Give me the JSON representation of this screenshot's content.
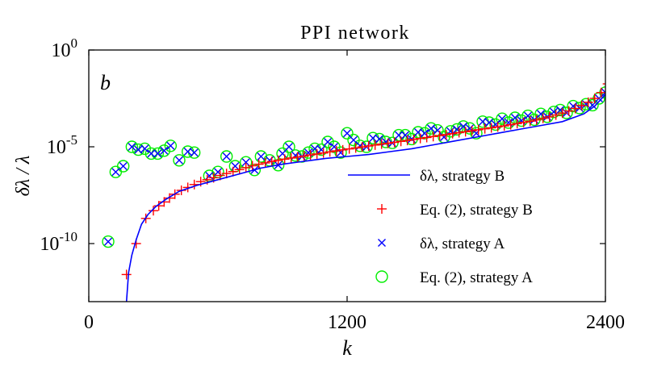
{
  "chart_data": {
    "type": "scatter",
    "title": "PPI network",
    "xlabel": "k",
    "ylabel": "δλ / λ",
    "panel_tag": "b",
    "xlim": [
      0,
      2400
    ],
    "ylim_log10": [
      -13,
      0
    ],
    "yscale": "log",
    "xticks": [
      0,
      1200,
      2400
    ],
    "xtick_labels": [
      "0",
      "1200",
      "2400"
    ],
    "yticks_log10": [
      0,
      -5,
      -10
    ],
    "ytick_labels": [
      {
        "base": "10",
        "exp": "0"
      },
      {
        "base": "10",
        "exp": "-5"
      },
      {
        "base": "10",
        "exp": "-10"
      }
    ],
    "legend_position": "bottom-right",
    "series": [
      {
        "name": "δλ, strategy B",
        "style": "line",
        "color": "#0000ff",
        "x": [
          175,
          185,
          200,
          220,
          245,
          275,
          310,
          360,
          420,
          500,
          600,
          700,
          800,
          900,
          1000,
          1100,
          1200,
          1300,
          1400,
          1500,
          1600,
          1700,
          1800,
          1900,
          2000,
          2100,
          2200,
          2300,
          2350,
          2400
        ],
        "y_log10": [
          -13,
          -11.5,
          -10.6,
          -9.8,
          -9.0,
          -8.5,
          -8.1,
          -7.7,
          -7.3,
          -7.0,
          -6.7,
          -6.4,
          -6.1,
          -5.9,
          -5.75,
          -5.6,
          -5.5,
          -5.4,
          -5.25,
          -5.1,
          -4.9,
          -4.7,
          -4.5,
          -4.3,
          -4.1,
          -3.9,
          -3.7,
          -3.3,
          -2.9,
          -2.3
        ]
      },
      {
        "name": "Eq. (2), strategy B",
        "style": "marker",
        "marker": "plus",
        "color": "#ff0000",
        "x": [
          175,
          220,
          265,
          300,
          325,
          350,
          375,
          400,
          430,
          460,
          490,
          520,
          550,
          580,
          610,
          640,
          670,
          700,
          730,
          760,
          790,
          820,
          850,
          880,
          910,
          940,
          970,
          1000,
          1030,
          1060,
          1090,
          1120,
          1150,
          1180,
          1210,
          1240,
          1270,
          1300,
          1330,
          1360,
          1390,
          1420,
          1450,
          1480,
          1510,
          1540,
          1570,
          1600,
          1630,
          1660,
          1690,
          1720,
          1750,
          1780,
          1810,
          1840,
          1870,
          1900,
          1930,
          1960,
          1990,
          2020,
          2050,
          2080,
          2110,
          2140,
          2170,
          2200,
          2230,
          2260,
          2290,
          2320,
          2350,
          2380,
          2410
        ],
        "y_log10": [
          -11.6,
          -10.0,
          -8.7,
          -8.3,
          -8.05,
          -7.85,
          -7.65,
          -7.45,
          -7.25,
          -7.1,
          -6.95,
          -6.8,
          -6.7,
          -6.6,
          -6.48,
          -6.38,
          -6.28,
          -6.18,
          -6.08,
          -5.98,
          -5.9,
          -5.83,
          -5.76,
          -5.7,
          -5.64,
          -5.58,
          -5.53,
          -5.48,
          -5.42,
          -5.37,
          -5.32,
          -5.26,
          -5.21,
          -5.16,
          -5.11,
          -5.06,
          -5.01,
          -4.96,
          -4.91,
          -4.86,
          -4.82,
          -4.77,
          -4.72,
          -4.67,
          -4.62,
          -4.57,
          -4.52,
          -4.47,
          -4.42,
          -4.37,
          -4.32,
          -4.27,
          -4.22,
          -4.17,
          -4.12,
          -4.07,
          -4.02,
          -3.97,
          -3.92,
          -3.86,
          -3.8,
          -3.74,
          -3.68,
          -3.61,
          -3.53,
          -3.45,
          -3.36,
          -3.26,
          -3.15,
          -3.02,
          -2.87,
          -2.7,
          -2.5,
          -2.2,
          -1.75
        ]
      },
      {
        "name": "δλ, strategy A",
        "style": "marker",
        "marker": "x",
        "color": "#0000ff",
        "x": [
          90,
          125,
          160,
          200,
          230,
          260,
          290,
          320,
          350,
          380,
          420,
          460,
          490,
          560,
          600,
          640,
          680,
          730,
          770,
          800,
          840,
          880,
          900,
          930,
          960,
          990,
          1020,
          1050,
          1080,
          1110,
          1140,
          1170,
          1200,
          1230,
          1260,
          1290,
          1320,
          1350,
          1380,
          1410,
          1440,
          1470,
          1500,
          1530,
          1560,
          1590,
          1620,
          1650,
          1680,
          1710,
          1740,
          1770,
          1800,
          1830,
          1860,
          1890,
          1920,
          1950,
          1980,
          2010,
          2040,
          2070,
          2100,
          2130,
          2160,
          2190,
          2220,
          2250,
          2280,
          2310,
          2340,
          2370,
          2400
        ],
        "y_log10": [
          -9.9,
          -6.3,
          -6.0,
          -5.0,
          -5.15,
          -5.1,
          -5.35,
          -5.35,
          -5.2,
          -4.95,
          -5.7,
          -5.25,
          -5.3,
          -6.5,
          -6.3,
          -5.5,
          -6.0,
          -5.8,
          -6.2,
          -5.5,
          -5.7,
          -5.95,
          -5.35,
          -5.0,
          -5.45,
          -5.5,
          -5.3,
          -5.1,
          -5.15,
          -4.75,
          -5.0,
          -5.3,
          -4.3,
          -4.65,
          -4.95,
          -5.0,
          -4.55,
          -4.6,
          -4.75,
          -4.8,
          -4.4,
          -4.4,
          -4.6,
          -4.25,
          -4.3,
          -4.05,
          -4.15,
          -4.5,
          -4.2,
          -4.1,
          -3.95,
          -4.05,
          -4.3,
          -3.7,
          -3.75,
          -3.85,
          -3.55,
          -3.75,
          -3.5,
          -3.65,
          -3.4,
          -3.6,
          -3.3,
          -3.45,
          -3.2,
          -3.1,
          -3.25,
          -2.9,
          -3.0,
          -2.8,
          -2.85,
          -2.5,
          -2.2
        ]
      },
      {
        "name": "Eq. (2), strategy A",
        "style": "marker",
        "marker": "circle",
        "color": "#00ee00",
        "x": [
          90,
          125,
          160,
          200,
          230,
          260,
          290,
          320,
          350,
          380,
          420,
          460,
          490,
          560,
          600,
          640,
          680,
          730,
          770,
          800,
          840,
          880,
          900,
          930,
          960,
          990,
          1020,
          1050,
          1080,
          1110,
          1140,
          1170,
          1200,
          1230,
          1260,
          1290,
          1320,
          1350,
          1380,
          1410,
          1440,
          1470,
          1500,
          1530,
          1560,
          1590,
          1620,
          1650,
          1680,
          1710,
          1740,
          1770,
          1800,
          1830,
          1860,
          1890,
          1920,
          1950,
          1980,
          2010,
          2040,
          2070,
          2100,
          2130,
          2160,
          2190,
          2220,
          2250,
          2280,
          2310,
          2340,
          2370,
          2400
        ],
        "y_log10": [
          -9.9,
          -6.3,
          -6.0,
          -5.0,
          -5.15,
          -5.1,
          -5.35,
          -5.35,
          -5.2,
          -4.95,
          -5.7,
          -5.25,
          -5.3,
          -6.5,
          -6.3,
          -5.5,
          -6.0,
          -5.8,
          -6.2,
          -5.5,
          -5.7,
          -5.95,
          -5.35,
          -5.0,
          -5.45,
          -5.5,
          -5.3,
          -5.1,
          -5.15,
          -4.75,
          -5.0,
          -5.3,
          -4.3,
          -4.65,
          -4.95,
          -5.0,
          -4.55,
          -4.6,
          -4.75,
          -4.8,
          -4.4,
          -4.4,
          -4.6,
          -4.25,
          -4.3,
          -4.05,
          -4.15,
          -4.5,
          -4.2,
          -4.1,
          -3.95,
          -4.05,
          -4.3,
          -3.7,
          -3.75,
          -3.85,
          -3.55,
          -3.75,
          -3.5,
          -3.65,
          -3.4,
          -3.6,
          -3.3,
          -3.45,
          -3.2,
          -3.1,
          -3.25,
          -2.9,
          -3.0,
          -2.8,
          -2.85,
          -2.5,
          -2.2
        ]
      }
    ]
  }
}
